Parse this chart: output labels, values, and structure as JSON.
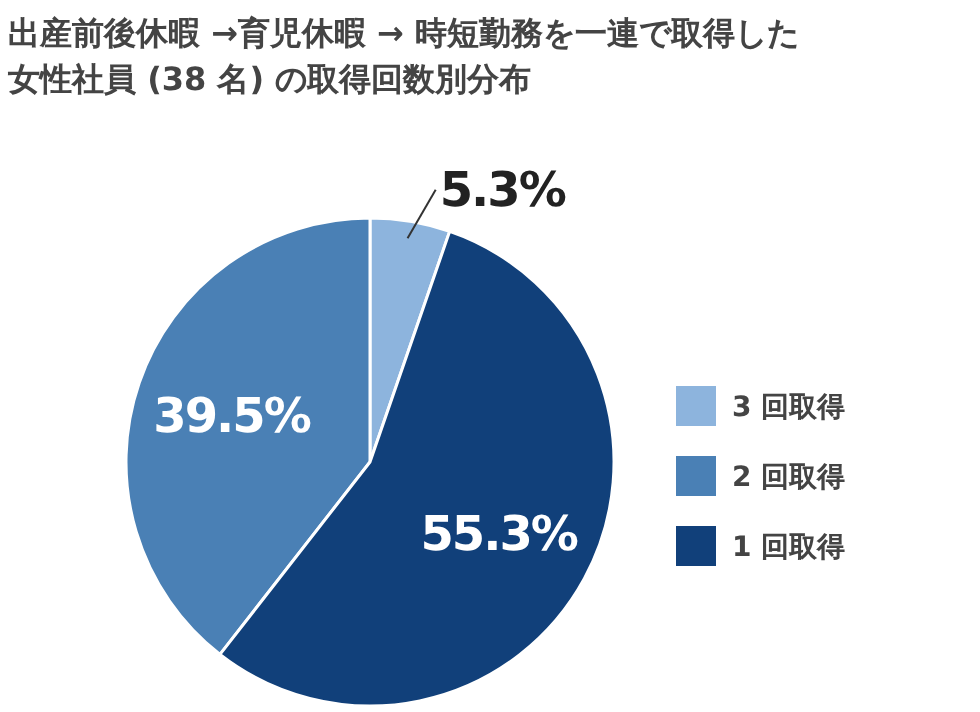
{
  "chart_data": {
    "type": "pie",
    "title": "出産前後休暇 →育児休暇 → 時短勤務を一連で取得した女性社員 (38 名) の取得回数別分布",
    "categories": [
      "3 回取得",
      "2 回取得",
      "1 回取得"
    ],
    "values": [
      5.3,
      39.5,
      55.3
    ],
    "colors": [
      "#8db4dd",
      "#4a80b5",
      "#11407a"
    ],
    "value_labels": [
      "5.3%",
      "39.5%",
      "55.3%"
    ],
    "legend": "right"
  }
}
